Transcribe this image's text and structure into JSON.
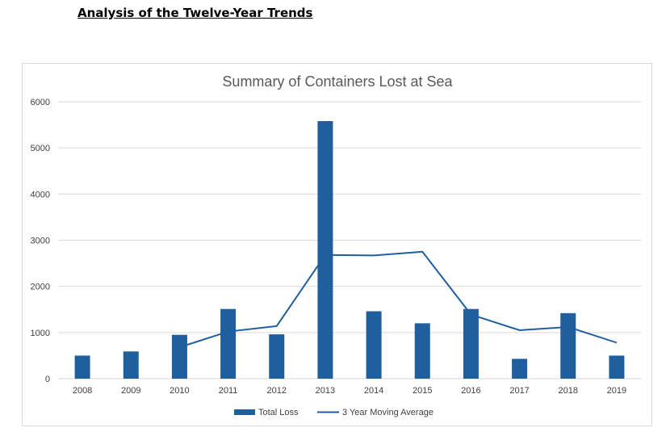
{
  "page": {
    "heading": "Analysis of the Twelve-Year Trends"
  },
  "chart_data": {
    "type": "bar",
    "title": "Summary of Containers Lost at Sea",
    "xlabel": "",
    "ylabel": "",
    "ylim": [
      0,
      6000
    ],
    "yticks": [
      0,
      1000,
      2000,
      3000,
      4000,
      5000,
      6000
    ],
    "categories": [
      "2008",
      "2009",
      "2010",
      "2011",
      "2012",
      "2013",
      "2014",
      "2015",
      "2016",
      "2017",
      "2018",
      "2019"
    ],
    "grid": true,
    "legend_position": "bottom",
    "series": [
      {
        "name": "Total Loss",
        "kind": "bar",
        "color": "#1f5f9e",
        "values": [
          500,
          590,
          950,
          1510,
          960,
          5580,
          1460,
          1200,
          1510,
          430,
          1420,
          500
        ]
      },
      {
        "name": "3 Year Moving Average",
        "kind": "line",
        "color": "#1f5f9e",
        "values": [
          null,
          null,
          680,
          1020,
          1140,
          2680,
          2670,
          2750,
          1390,
          1050,
          1120,
          780
        ]
      }
    ]
  }
}
